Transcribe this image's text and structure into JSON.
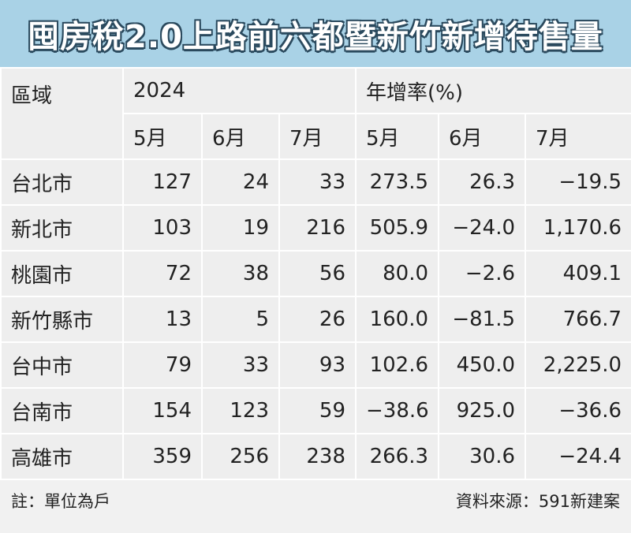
{
  "header": {
    "title": "囤房稅2.0上路前六都暨新竹新增待售量"
  },
  "table": {
    "region_header": "區域",
    "group_headers": [
      "2024",
      "年增率(%)"
    ],
    "month_headers": [
      "5月",
      "6月",
      "7月",
      "5月",
      "6月",
      "7月"
    ],
    "rows": [
      [
        "台北市",
        "127",
        "24",
        "33",
        "273.5",
        "26.3",
        "−19.5"
      ],
      [
        "新北市",
        "103",
        "19",
        "216",
        "505.9",
        "−24.0",
        "1,170.6"
      ],
      [
        "桃園市",
        "72",
        "38",
        "56",
        "80.0",
        "−2.6",
        "409.1"
      ],
      [
        "新竹縣市",
        "13",
        "5",
        "26",
        "160.0",
        "−81.5",
        "766.7"
      ],
      [
        "台中市",
        "79",
        "33",
        "93",
        "102.6",
        "450.0",
        "2,225.0"
      ],
      [
        "台南市",
        "154",
        "123",
        "59",
        "−38.6",
        "925.0",
        "−36.6"
      ],
      [
        "高雄市",
        "359",
        "256",
        "238",
        "266.3",
        "30.6",
        "−24.4"
      ]
    ]
  },
  "footer": {
    "note": "註：單位為戶",
    "source": "資料來源：591新建案"
  }
}
